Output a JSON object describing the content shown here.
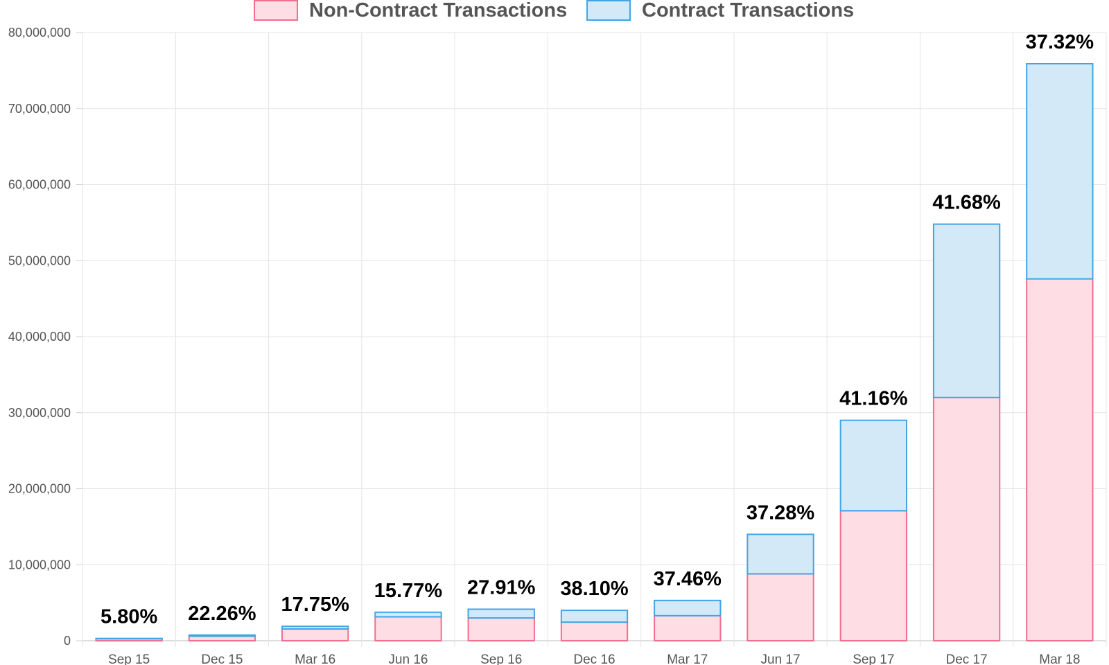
{
  "chart_data": {
    "type": "bar",
    "stacked": true,
    "categories": [
      "Sep 15",
      "Dec 15",
      "Mar 16",
      "Jun 16",
      "Sep 16",
      "Dec 16",
      "Mar 17",
      "Jun 17",
      "Sep 17",
      "Dec 17",
      "Mar 18"
    ],
    "series": [
      {
        "name": "Non-Contract Transactions",
        "fill": "#ffdde4",
        "stroke": "#f06f8e",
        "values": [
          280000,
          600000,
          1550000,
          3150000,
          3000000,
          2450000,
          3300000,
          8800000,
          17100000,
          32000000,
          47600000
        ]
      },
      {
        "name": "Contract Transactions",
        "fill": "#d3e9f8",
        "stroke": "#42a4e6",
        "values": [
          20000,
          150000,
          350000,
          600000,
          1150000,
          1550000,
          2000000,
          5200000,
          11900000,
          22800000,
          28300000
        ]
      }
    ],
    "data_labels": [
      "5.80%",
      "22.26%",
      "17.75%",
      "15.77%",
      "27.91%",
      "38.10%",
      "37.46%",
      "37.28%",
      "41.16%",
      "41.68%",
      "37.32%"
    ],
    "ylim": [
      0,
      80000000
    ],
    "yticks": [
      0,
      10000000,
      20000000,
      30000000,
      40000000,
      50000000,
      60000000,
      70000000,
      80000000
    ],
    "ytick_labels": [
      "0",
      "10,000,000",
      "20,000,000",
      "30,000,000",
      "40,000,000",
      "50,000,000",
      "60,000,000",
      "70,000,000",
      "80,000,000"
    ],
    "grid": true,
    "legend_position": "top-center",
    "title": "",
    "xlabel": "",
    "ylabel": ""
  }
}
